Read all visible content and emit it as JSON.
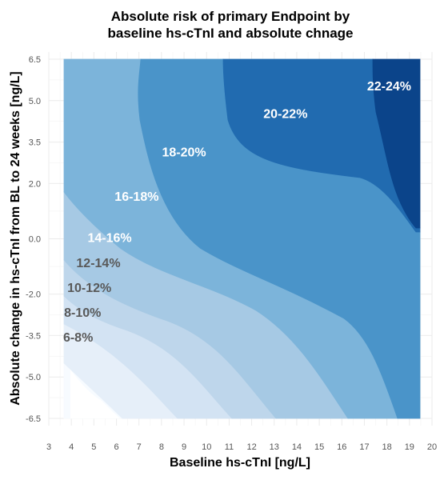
{
  "chart_data": {
    "type": "contour",
    "title_line1": "Absolute risk of primary Endpoint by",
    "title_line2": "baseline hs-cTnI and absolute chnage",
    "xlabel": "Baseline hs-cTnI [ng/L]",
    "ylabel": "Absolute change in hs-cTnI from BL to 24 weeks [ng/L]",
    "xlim": [
      3,
      20
    ],
    "ylim": [
      -6.5,
      6.5
    ],
    "x_ticks": [
      "3",
      "4",
      "5",
      "6",
      "7",
      "8",
      "9",
      "10",
      "11",
      "12",
      "13",
      "14",
      "15",
      "16",
      "17",
      "18",
      "19",
      "20"
    ],
    "y_ticks": [
      "6.5",
      "5.0",
      "3.5",
      "2.0",
      "0.0",
      "-2.0",
      "-3.5",
      "-5.0",
      "-6.5"
    ],
    "y_tick_values": [
      6.5,
      5.0,
      3.5,
      2.0,
      0.0,
      -2.0,
      -3.5,
      -5.0,
      -6.5
    ],
    "data_extent": {
      "x": [
        3.6,
        19.5
      ],
      "y": [
        -6.5,
        6.5
      ]
    },
    "grid": true,
    "bands": [
      {
        "label": "6-8%",
        "color": "#f7fbff",
        "text_color": "#595959",
        "label_x": 4.3,
        "label_y": -3.6
      },
      {
        "label": "8-10%",
        "color": "#e6eff9",
        "text_color": "#595959",
        "label_x": 4.5,
        "label_y": -2.7
      },
      {
        "label": "10-12%",
        "color": "#d3e3f3",
        "text_color": "#595959",
        "label_x": 4.8,
        "label_y": -1.8
      },
      {
        "label": "12-14%",
        "color": "#bed6eb",
        "text_color": "#595959",
        "label_x": 5.2,
        "label_y": -0.9
      },
      {
        "label": "14-16%",
        "color": "#a6c9e4",
        "text_color": "#ffffff",
        "label_x": 5.7,
        "label_y": 0.0
      },
      {
        "label": "16-18%",
        "color": "#7cb4da",
        "text_color": "#ffffff",
        "label_x": 6.9,
        "label_y": 1.5
      },
      {
        "label": "18-20%",
        "color": "#4a94c9",
        "text_color": "#ffffff",
        "label_x": 9.0,
        "label_y": 3.1
      },
      {
        "label": "20-22%",
        "color": "#216bb0",
        "text_color": "#ffffff",
        "label_x": 13.5,
        "label_y": 4.5
      },
      {
        "label": "22-24%",
        "color": "#0b448a",
        "text_color": "#ffffff",
        "label_x": 18.1,
        "label_y": 5.5
      }
    ]
  }
}
